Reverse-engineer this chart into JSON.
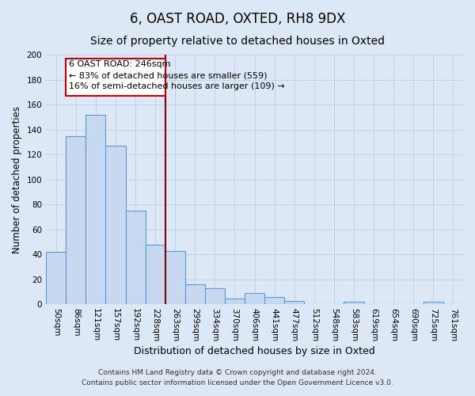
{
  "title": "6, OAST ROAD, OXTED, RH8 9DX",
  "subtitle": "Size of property relative to detached houses in Oxted",
  "xlabel": "Distribution of detached houses by size in Oxted",
  "ylabel": "Number of detached properties",
  "categories": [
    "50sqm",
    "86sqm",
    "121sqm",
    "157sqm",
    "192sqm",
    "228sqm",
    "263sqm",
    "299sqm",
    "334sqm",
    "370sqm",
    "406sqm",
    "441sqm",
    "477sqm",
    "512sqm",
    "548sqm",
    "583sqm",
    "619sqm",
    "654sqm",
    "690sqm",
    "725sqm",
    "761sqm"
  ],
  "values": [
    42,
    135,
    152,
    127,
    75,
    48,
    43,
    16,
    13,
    5,
    9,
    6,
    3,
    0,
    0,
    2,
    0,
    0,
    0,
    2,
    0
  ],
  "bar_color": "#c6d9f0",
  "bar_edge_color": "#5b9bd5",
  "vline_color": "#8b0000",
  "annotation_title": "6 OAST ROAD: 246sqm",
  "annotation_line1": "← 83% of detached houses are smaller (559)",
  "annotation_line2": "16% of semi-detached houses are larger (109) →",
  "annotation_box_facecolor": "#ffffff",
  "annotation_box_edgecolor": "#cc0000",
  "ylim": [
    0,
    200
  ],
  "yticks": [
    0,
    20,
    40,
    60,
    80,
    100,
    120,
    140,
    160,
    180,
    200
  ],
  "grid_color": "#c0cfe0",
  "bg_color": "#dce8f5",
  "plot_bg_color": "#dce8f5",
  "footer1": "Contains HM Land Registry data © Crown copyright and database right 2024.",
  "footer2": "Contains public sector information licensed under the Open Government Licence v3.0.",
  "title_fontsize": 12,
  "subtitle_fontsize": 10,
  "xlabel_fontsize": 9,
  "ylabel_fontsize": 8.5,
  "tick_fontsize": 7.5,
  "footer_fontsize": 6.5
}
